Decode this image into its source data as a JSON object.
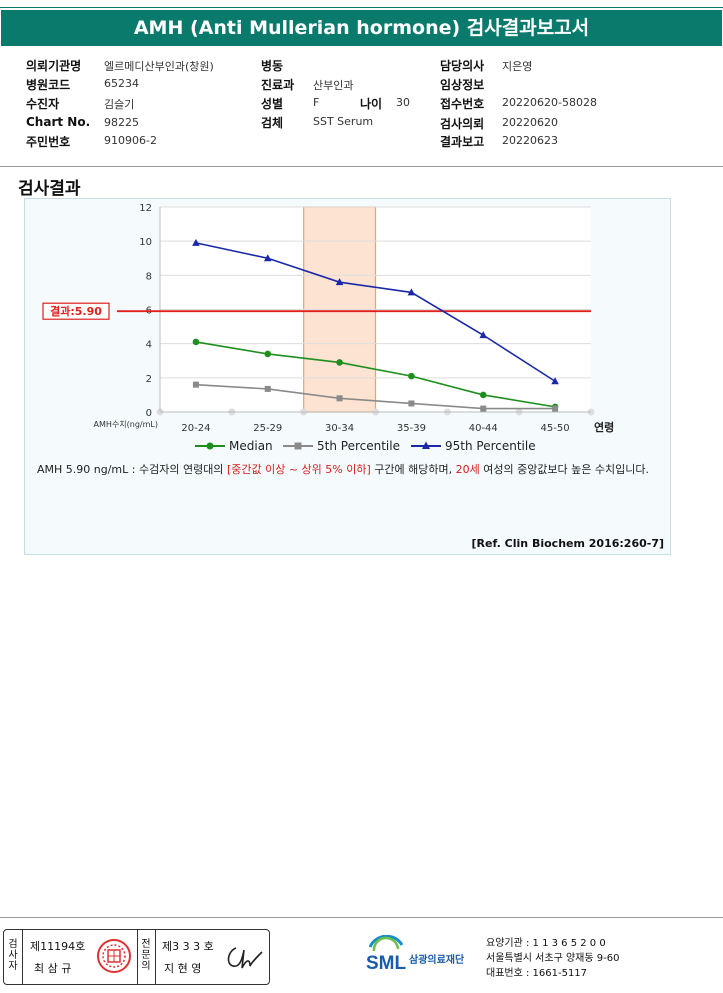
{
  "report": {
    "title": "AMH (Anti Mullerian hormone) 검사결과보고서"
  },
  "info": {
    "col1": [
      {
        "label": "의뢰기관명",
        "value": "엘르메디산부인과(창원)"
      },
      {
        "label": "병원코드",
        "value": "65234"
      },
      {
        "label": "수진자",
        "value": "김슬기"
      },
      {
        "label": "Chart No.",
        "value": "98225"
      },
      {
        "label": "주민번호",
        "value": "910906-2"
      }
    ],
    "col2": [
      {
        "label": "병동",
        "value": ""
      },
      {
        "label": "진료과",
        "value": "산부인과"
      },
      {
        "label": "성별",
        "value": "F"
      },
      {
        "label": "검체",
        "value": "SST Serum"
      }
    ],
    "age": {
      "label": "나이",
      "value": "30"
    },
    "col3": [
      {
        "label": "담당의사",
        "value": "지은영"
      },
      {
        "label": "임상정보",
        "value": ""
      },
      {
        "label": "접수번호",
        "value": "20220620-58028"
      },
      {
        "label": "검사의뢰",
        "value": "20220620"
      },
      {
        "label": "결과보고",
        "value": "20220623"
      }
    ]
  },
  "section_title": "검사결과",
  "chart_data": {
    "type": "line",
    "categories": [
      "20-24",
      "25-29",
      "30-34",
      "35-39",
      "40-44",
      "45-50"
    ],
    "xlabel": "연령",
    "ylabel": "AMH수치(ng/mL)",
    "ylim": [
      0,
      12
    ],
    "yticks": [
      "0",
      "2",
      "4",
      "6",
      "8",
      "10",
      "12"
    ],
    "highlight_category": "30-34",
    "result_line": {
      "label": "결과:5.90",
      "value": 5.9,
      "color": "#e0201c"
    },
    "series": [
      {
        "name": "Median",
        "values": [
          4.1,
          3.4,
          2.9,
          2.1,
          1.0,
          0.3
        ],
        "color": "#1e8f1e",
        "marker": "circle"
      },
      {
        "name": "5th Percentile",
        "values": [
          1.6,
          1.35,
          0.8,
          0.5,
          0.2,
          0.2
        ],
        "color": "#8a8a8a",
        "marker": "square"
      },
      {
        "name": "95th Percentile",
        "values": [
          9.9,
          9.0,
          7.6,
          7.0,
          4.5,
          1.8
        ],
        "color": "#1a28a8",
        "marker": "triangle"
      }
    ],
    "legend_position": "bottom",
    "grid": true
  },
  "description": {
    "part1": "AMH  5.90 ng/mL : 수검자의 연령대의 ",
    "highlight1": "[중간값 이상 ~ 상위 5% 이하]",
    "part2": " 구간에 해당하며, ",
    "highlight2": "20세",
    "part3": " 여성의 중앙값보다 높은 수치입니다."
  },
  "reference": "[Ref. Clin Biochem 2016:260-7]",
  "footer": {
    "inspector_label": "검사자",
    "inspector_no": "제11194호",
    "inspector_name": "최 삼 규",
    "specialist_label": "전문의",
    "specialist_no": "제3 3 3 호",
    "specialist_name": "지 현 영",
    "logo_text": "SML",
    "org_name": "삼광의료재단",
    "addr_lines": [
      "요양기관 : 1 1 3 6 5 2 0 0",
      "서울특별시 서초구 양재동 9-60",
      "대표번호 : 1661-5117"
    ]
  }
}
